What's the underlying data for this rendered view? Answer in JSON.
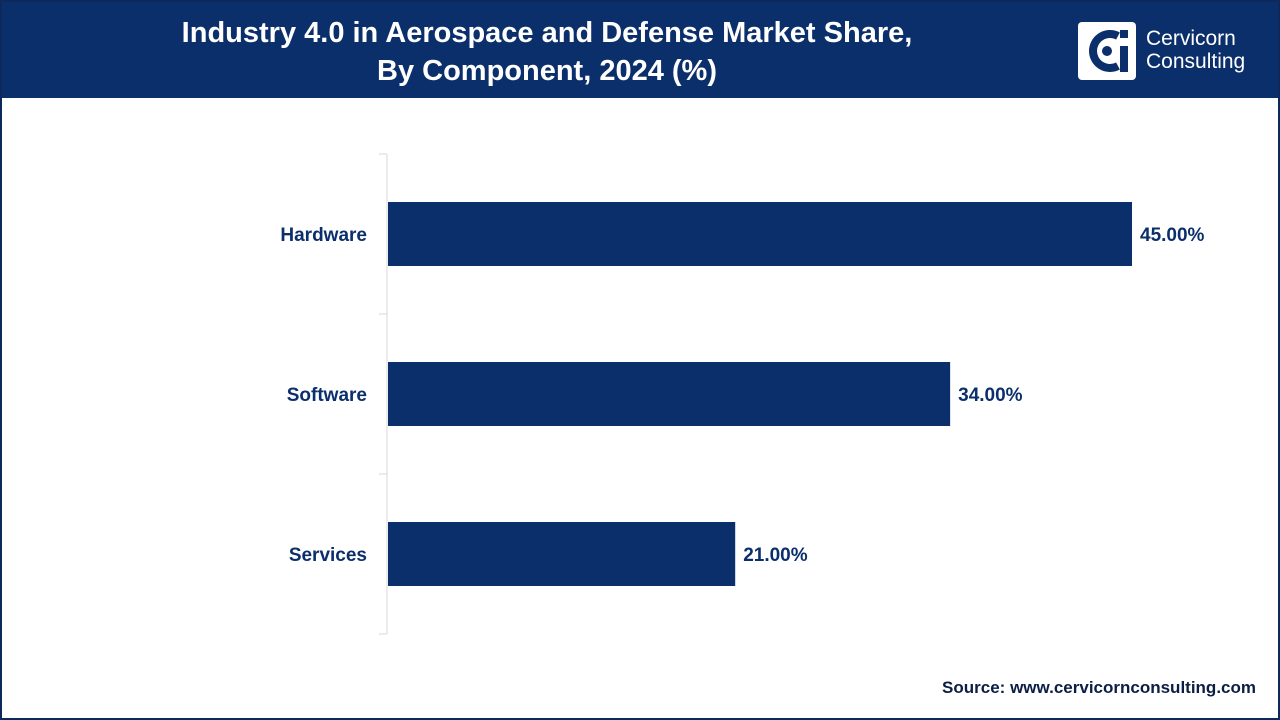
{
  "header": {
    "title_line1": "Industry 4.0 in Aerospace and Defense Market Share,",
    "title_line2": "By Component, 2024 (%)"
  },
  "logo": {
    "line1": "Cervicorn",
    "line2": "Consulting"
  },
  "source": {
    "label": "Source:",
    "url": "www.cervicornconsulting.com"
  },
  "colors": {
    "header_bg": "#0b2f6b",
    "bar": "#0b2f6b",
    "label_text": "#0b2f6b"
  },
  "chart_data": {
    "type": "bar",
    "orientation": "horizontal",
    "title": "Industry 4.0 in Aerospace and Defense Market Share, By Component, 2024 (%)",
    "categories": [
      "Hardware",
      "Software",
      "Services"
    ],
    "values": [
      45.0,
      34.0,
      21.0
    ],
    "value_labels": [
      "45.00%",
      "34.00%",
      "21.00%"
    ],
    "xlabel": "",
    "ylabel": "",
    "xlim": [
      0,
      50
    ],
    "grid": false,
    "legend": "none"
  }
}
